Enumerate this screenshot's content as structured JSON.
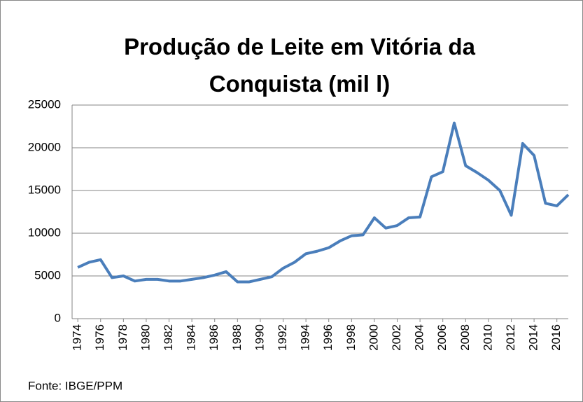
{
  "chart_data": {
    "type": "line",
    "title": "Produção de Leite em Vitória da Conquista (mil l)",
    "source": "Fonte: IBGE/PPM",
    "x": [
      1974,
      1975,
      1976,
      1977,
      1978,
      1979,
      1980,
      1981,
      1982,
      1983,
      1984,
      1985,
      1986,
      1987,
      1988,
      1989,
      1990,
      1991,
      1992,
      1993,
      1994,
      1995,
      1996,
      1997,
      1998,
      1999,
      2000,
      2001,
      2002,
      2003,
      2004,
      2005,
      2006,
      2007,
      2008,
      2009,
      2010,
      2011,
      2012,
      2013,
      2014,
      2015,
      2016,
      2017
    ],
    "series": [
      {
        "name": null,
        "color": "#4a7ebb",
        "values": [
          6000,
          6600,
          6900,
          4800,
          5000,
          4400,
          4600,
          4600,
          4400,
          4400,
          4600,
          4800,
          5100,
          5500,
          4300,
          4300,
          4600,
          4900,
          5900,
          6600,
          7600,
          7900,
          8300,
          9100,
          9700,
          9800,
          11800,
          10600,
          10900,
          11800,
          11900,
          16600,
          17200,
          22900,
          17900,
          17100,
          16200,
          15000,
          12100,
          20500,
          19100,
          13500,
          13200,
          14500
        ]
      }
    ],
    "xlim": [
      1973.5,
      2017
    ],
    "xticks": [
      1974,
      1976,
      1978,
      1980,
      1982,
      1984,
      1986,
      1988,
      1990,
      1992,
      1994,
      1996,
      1998,
      2000,
      2002,
      2004,
      2006,
      2008,
      2010,
      2012,
      2014,
      2016
    ],
    "ylim": [
      0,
      25000
    ],
    "yticks": [
      0,
      5000,
      10000,
      15000,
      20000,
      25000
    ],
    "grid": true
  }
}
